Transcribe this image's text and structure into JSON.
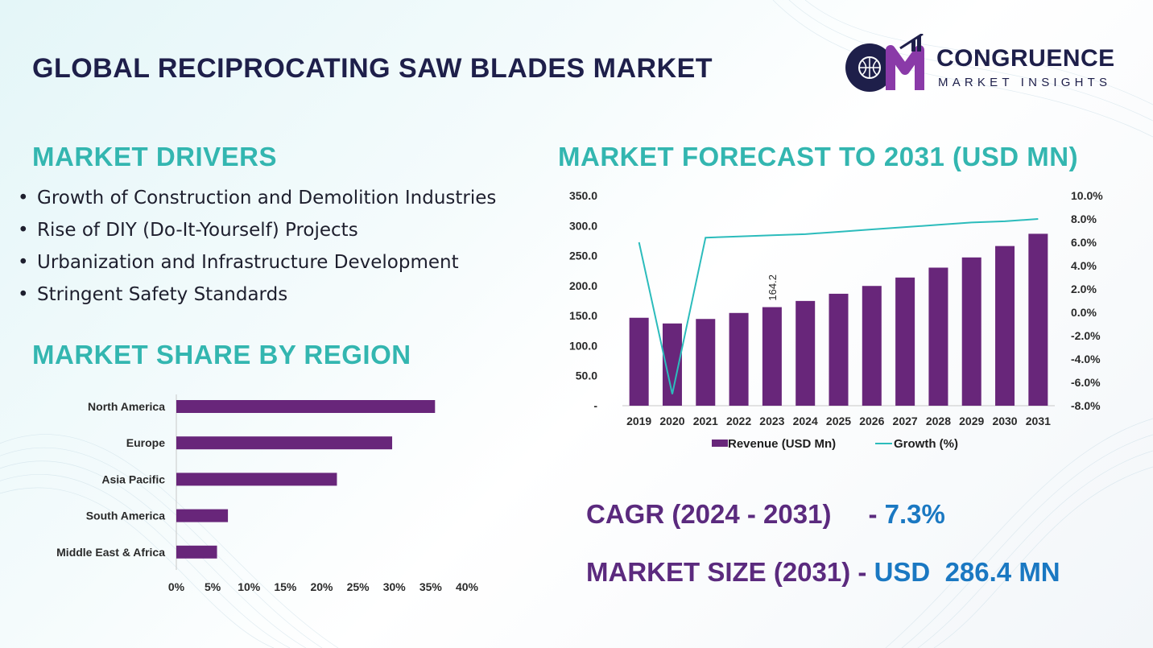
{
  "title": "GLOBAL RECIPROCATING SAW BLADES MARKET",
  "logo": {
    "line1": "CONGRUENCE",
    "line2": "MARKET INSIGHTS"
  },
  "drivers": {
    "heading": "MARKET DRIVERS",
    "items": [
      "Growth of Construction and Demolition Industries",
      "Rise of DIY (Do-It-Yourself) Projects",
      "Urbanization and Infrastructure Development",
      "Stringent Safety Standards"
    ]
  },
  "share_heading": "MARKET SHARE BY REGION",
  "forecast_heading": "MARKET FORECAST TO 2031 (USD MN)",
  "kpis": {
    "cagr_label": "CAGR (2024 - 2031)",
    "cagr_sep": "- ",
    "cagr_value": "7.3%",
    "size_label": "MARKET SIZE (2031)",
    "size_sep": " - ",
    "size_value": "USD  286.4 MN"
  },
  "colors": {
    "bar": "#68267a",
    "line": "#2cbcbc",
    "heading": "#33b6b0",
    "title": "#1e1f4a",
    "kpi_label": "#5b2a7e",
    "kpi_value": "#1a78c2"
  },
  "chart_data": [
    {
      "type": "bar",
      "orientation": "horizontal",
      "categories": [
        "North America",
        "Europe",
        "Asia Pacific",
        "South America",
        "Middle East & Africa"
      ],
      "values": [
        35.6,
        29.7,
        22.1,
        7.1,
        5.6
      ],
      "xlim": [
        0,
        40
      ],
      "ticks": [
        "0%",
        "5%",
        "10%",
        "15%",
        "20%",
        "25%",
        "30%",
        "35%",
        "40%"
      ],
      "grid": false
    },
    {
      "type": "bar+line",
      "categories": [
        "2019",
        "2020",
        "2021",
        "2022",
        "2023",
        "2024",
        "2025",
        "2026",
        "2027",
        "2028",
        "2029",
        "2030",
        "2031"
      ],
      "series": [
        {
          "name": "Revenue (USD Mn)",
          "type": "bar",
          "axis": "left",
          "values": [
            146.5,
            137.0,
            144.5,
            154.5,
            164.2,
            174.5,
            186.5,
            199.5,
            213.5,
            230.0,
            247.0,
            266.0,
            286.4
          ]
        },
        {
          "name": "Growth (%)",
          "type": "line",
          "axis": "right",
          "values": [
            6.0,
            -7.0,
            6.4,
            6.5,
            6.6,
            6.7,
            6.9,
            7.1,
            7.3,
            7.5,
            7.7,
            7.8,
            8.0
          ]
        }
      ],
      "left_axis": {
        "ylim": [
          0,
          350
        ],
        "ticks": [
          "-",
          "50.0",
          "100.0",
          "150.0",
          "200.0",
          "250.0",
          "300.0",
          "350.0"
        ]
      },
      "right_axis": {
        "ylim": [
          -8,
          10
        ],
        "ticks": [
          "-8.0%",
          "-6.0%",
          "-4.0%",
          "-2.0%",
          "0.0%",
          "2.0%",
          "4.0%",
          "6.0%",
          "8.0%",
          "10.0%"
        ]
      },
      "data_labels": [
        {
          "category": "2023",
          "text": "164.2"
        }
      ],
      "legend": "bottom",
      "grid": false
    }
  ]
}
